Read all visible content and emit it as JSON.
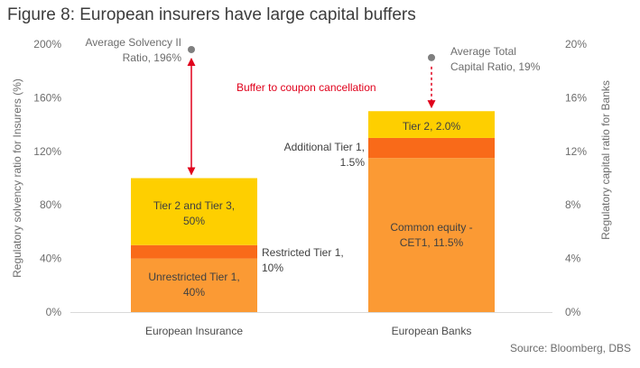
{
  "title": "Figure 8: European insurers have large capital buffers",
  "source": "Source: Bloomberg, DBS",
  "chart_data": {
    "type": "bar",
    "stacked": true,
    "categories": [
      "European Insurance",
      "European Banks"
    ],
    "left_axis": {
      "label": "Regulatory solvency ratio for Insurers (%)",
      "ylim": [
        0,
        200
      ],
      "ticks": [
        "0%",
        "40%",
        "80%",
        "120%",
        "160%",
        "200%"
      ]
    },
    "right_axis": {
      "label": "Regulatory capital ratio for Banks",
      "ylim": [
        0,
        20
      ],
      "ticks": [
        "0%",
        "4%",
        "8%",
        "12%",
        "16%",
        "20%"
      ]
    },
    "grid": false,
    "legend": "none",
    "bars": [
      {
        "category": "European Insurance",
        "axis": "left",
        "segments": [
          {
            "name": "Unrestricted Tier 1",
            "value": 40,
            "color": "#fb9a34",
            "label": [
              "Unrestricted Tier 1,",
              "40%"
            ]
          },
          {
            "name": "Restricted Tier 1",
            "value": 10,
            "color": "#f96a19",
            "label": [
              "Restricted Tier 1,",
              "10%"
            ]
          },
          {
            "name": "Tier 2 and Tier 3",
            "value": 50,
            "color": "#fecf00",
            "label": [
              "Tier 2 and Tier 3,",
              "50%"
            ]
          }
        ],
        "average": {
          "value": 196,
          "label": [
            "Average Solvency II",
            "Ratio, 196%"
          ]
        }
      },
      {
        "category": "European Banks",
        "axis": "right",
        "segments": [
          {
            "name": "Common equity - CET1",
            "value": 11.5,
            "color": "#fb9a34",
            "label": [
              "Common equity -",
              "CET1, 11.5%"
            ]
          },
          {
            "name": "Additional Tier 1",
            "value": 1.5,
            "color": "#f96a19",
            "label": [
              "Additional Tier 1,",
              "1.5%"
            ]
          },
          {
            "name": "Tier 2",
            "value": 2.0,
            "color": "#fecf00",
            "label": [
              "Tier 2, 2.0%"
            ]
          }
        ],
        "average": {
          "value": 19,
          "label": [
            "Average Total",
            "Capital Ratio, 19%"
          ]
        }
      }
    ],
    "annotations": [
      {
        "text": "Buffer to coupon cancellation",
        "color": "#e0001b"
      }
    ]
  }
}
